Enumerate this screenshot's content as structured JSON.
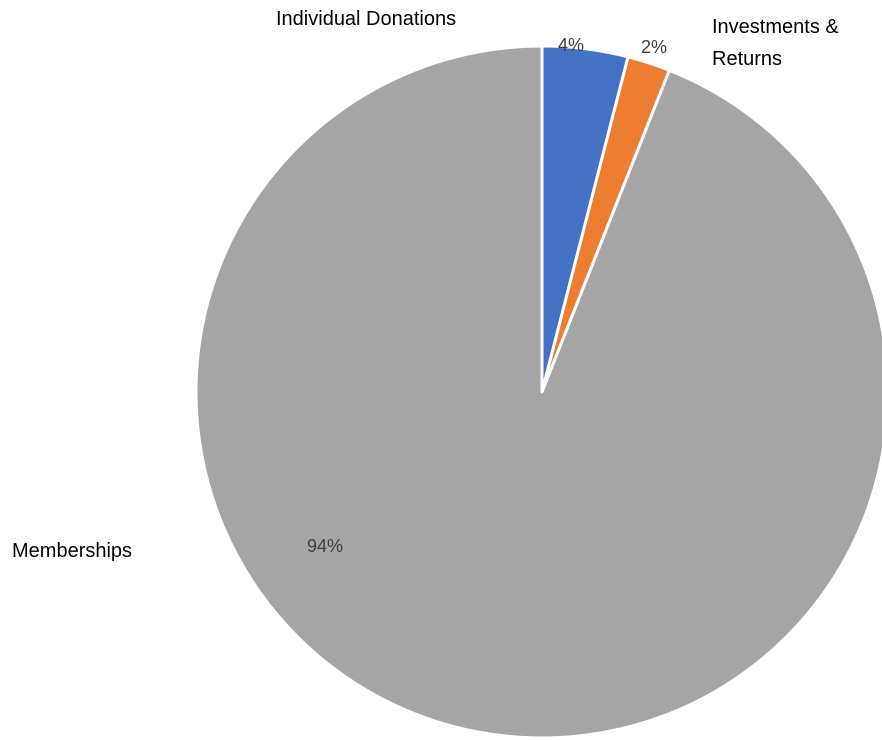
{
  "chart_data": {
    "type": "pie",
    "categories": [
      "Individual Donations",
      "Investments & Returns",
      "Memberships"
    ],
    "values": [
      4,
      2,
      94
    ],
    "value_labels": [
      "4%",
      "2%",
      "94%"
    ],
    "colors": [
      "#4472C4",
      "#ED7D31",
      "#A5A5A5"
    ],
    "start_angle": "12 o'clock",
    "direction": "clockwise",
    "legend": "none"
  }
}
